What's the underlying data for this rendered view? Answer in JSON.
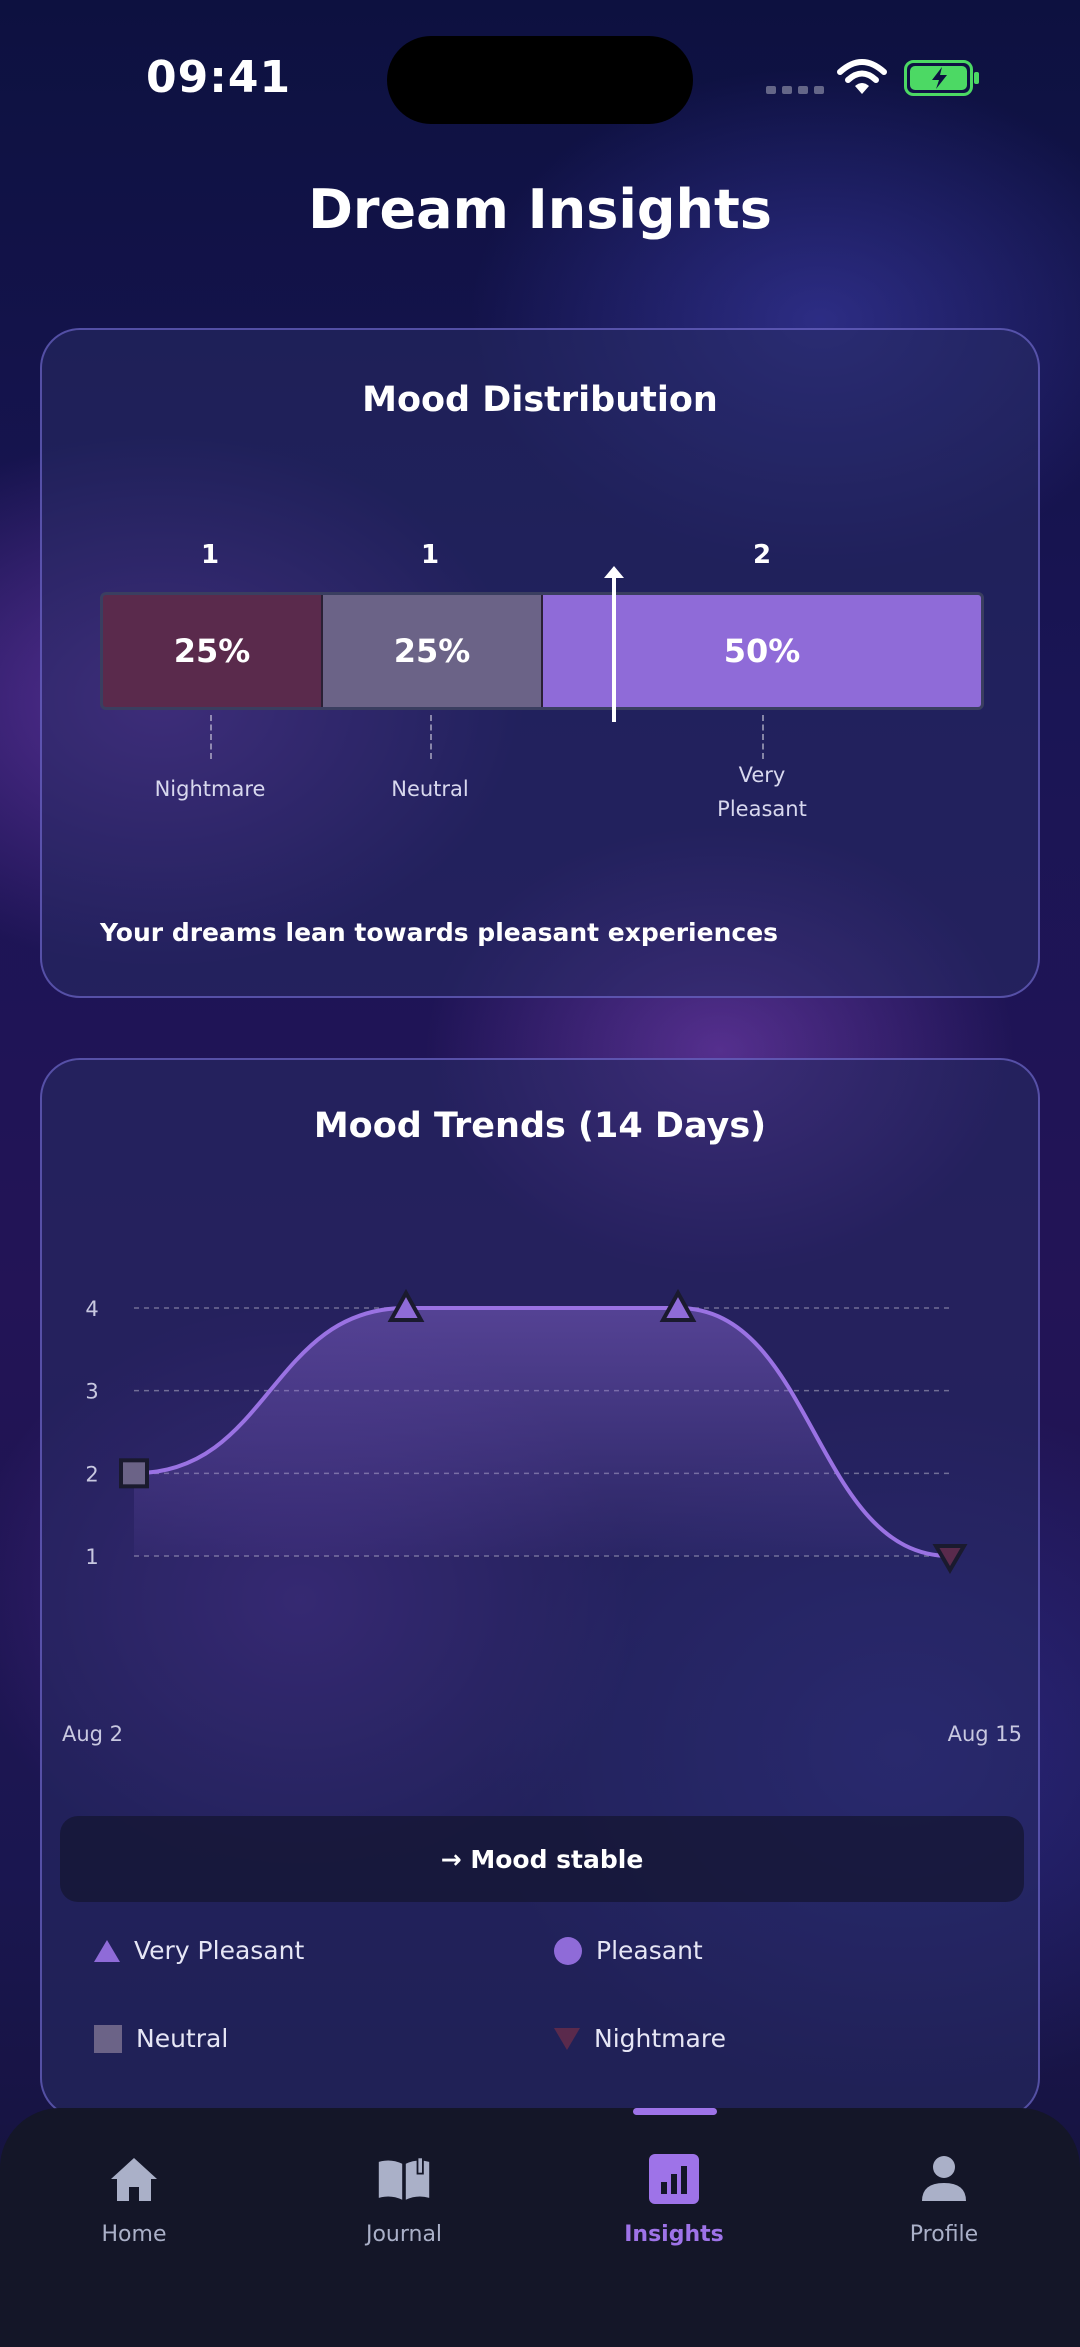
{
  "status_bar": {
    "time": "09:41"
  },
  "page": {
    "title": "Dream Insights"
  },
  "mood_distribution": {
    "title": "Mood Distribution",
    "segments": [
      {
        "label": "Nightmare",
        "count": "1",
        "percent": "25%",
        "color": "#5a2a4c"
      },
      {
        "label": "Neutral",
        "count": "1",
        "percent": "25%",
        "color": "#6b6387"
      },
      {
        "label": "Very Pleasant",
        "count": "2",
        "percent": "50%",
        "color": "#8f6bd8"
      }
    ],
    "summary": "Your dreams lean towards pleasant experiences"
  },
  "mood_trends": {
    "title": "Mood Trends (14 Days)",
    "y_ticks": [
      "4",
      "3",
      "2",
      "1"
    ],
    "x_start": "Aug 2",
    "x_end": "Aug 15",
    "status": "→ Mood stable"
  },
  "chart_data": {
    "type": "line",
    "title": "Mood Trends (14 Days)",
    "x": [
      "Aug 2",
      "Aug 6",
      "Aug 11",
      "Aug 15"
    ],
    "series": [
      {
        "values": [
          2,
          4,
          4,
          1
        ],
        "markers": [
          "Neutral",
          "Very Pleasant",
          "Very Pleasant",
          "Nightmare"
        ]
      }
    ],
    "ylim": [
      1,
      4
    ],
    "y_ticks": [
      1,
      2,
      3,
      4
    ],
    "grid": true
  },
  "legend": [
    {
      "label": "Very Pleasant",
      "icon": "triangle-up",
      "color": "#8f6bd8"
    },
    {
      "label": "Pleasant",
      "icon": "circle",
      "color": "#8f6bd8"
    },
    {
      "label": "Neutral",
      "icon": "square",
      "color": "#6b6387"
    },
    {
      "label": "Nightmare",
      "icon": "triangle-down",
      "color": "#5a2a4c"
    }
  ],
  "tab_bar": {
    "tabs": [
      {
        "label": "Home",
        "icon": "home-icon"
      },
      {
        "label": "Journal",
        "icon": "book-icon"
      },
      {
        "label": "Insights",
        "icon": "chart-icon",
        "active": true
      },
      {
        "label": "Profile",
        "icon": "person-icon"
      }
    ]
  }
}
